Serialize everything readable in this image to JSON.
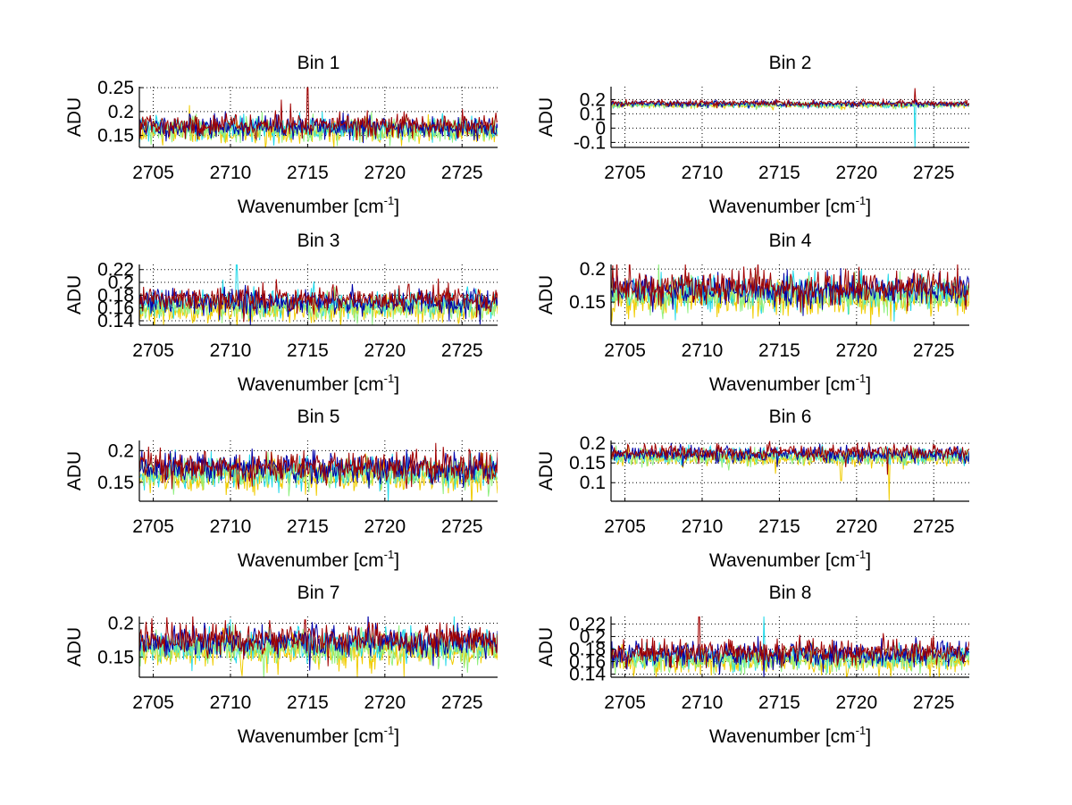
{
  "chart_data": [
    {
      "type": "line",
      "title": "Bin 1",
      "xlabel": "Wavenumber [cm",
      "xlabel_superscript": "-1",
      "xlabel_suffix": "]",
      "ylabel": "ADU",
      "xlim": [
        2704.1,
        2727.3
      ],
      "ylim": [
        0.125,
        0.252
      ],
      "xticks": [
        2705,
        2710,
        2715,
        2720,
        2725
      ],
      "xtick_labels": [
        "2705",
        "2710",
        "2715",
        "2720",
        "2725"
      ],
      "yticks": [
        0.15,
        0.2,
        0.25
      ],
      "ytick_labels": [
        "0.15",
        "0.2",
        "0.25"
      ],
      "grid": true,
      "series_means": [
        0.168,
        0.165,
        0.162,
        0.158,
        0.172
      ],
      "noise": 0.012,
      "spikes": [
        {
          "series": 4,
          "x": 2715.0,
          "y": 0.25
        },
        {
          "series": 4,
          "x": 2713.3,
          "y": 0.225
        },
        {
          "series": 3,
          "x": 2716.7,
          "y": 0.125
        }
      ],
      "seed": 11
    },
    {
      "type": "line",
      "title": "Bin 2",
      "xlabel": "Wavenumber [cm",
      "xlabel_superscript": "-1",
      "xlabel_suffix": "]",
      "ylabel": "ADU",
      "xlim": [
        2704.1,
        2727.3
      ],
      "ylim": [
        -0.135,
        0.29
      ],
      "xticks": [
        2705,
        2710,
        2715,
        2720,
        2725
      ],
      "xtick_labels": [
        "2705",
        "2710",
        "2715",
        "2720",
        "2725"
      ],
      "yticks": [
        -0.1,
        0,
        0.1,
        0.2
      ],
      "ytick_labels": [
        "-0.1",
        "0",
        "0.1",
        "0.2"
      ],
      "grid": true,
      "series_means": [
        0.17,
        0.165,
        0.163,
        0.16,
        0.175
      ],
      "noise": 0.01,
      "spikes": [
        {
          "series": 1,
          "x": 2723.8,
          "y": -0.135
        },
        {
          "series": 4,
          "x": 2723.8,
          "y": 0.28
        }
      ],
      "seed": 22
    },
    {
      "type": "line",
      "title": "Bin 3",
      "xlabel": "Wavenumber [cm",
      "xlabel_superscript": "-1",
      "xlabel_suffix": "]",
      "ylabel": "ADU",
      "xlim": [
        2704.1,
        2727.3
      ],
      "ylim": [
        0.133,
        0.228
      ],
      "xticks": [
        2705,
        2710,
        2715,
        2720,
        2725
      ],
      "xtick_labels": [
        "2705",
        "2710",
        "2715",
        "2720",
        "2725"
      ],
      "yticks": [
        0.14,
        0.16,
        0.18,
        0.2,
        0.22
      ],
      "ytick_labels": [
        "0.14",
        "0.16",
        "0.18",
        "0.2",
        "0.22"
      ],
      "grid": true,
      "series_means": [
        0.17,
        0.168,
        0.162,
        0.158,
        0.174
      ],
      "noise": 0.01,
      "spikes": [
        {
          "series": 1,
          "x": 2710.4,
          "y": 0.228
        },
        {
          "series": 0,
          "x": 2711.3,
          "y": 0.133
        }
      ],
      "seed": 33
    },
    {
      "type": "line",
      "title": "Bin 4",
      "xlabel": "Wavenumber [cm",
      "xlabel_superscript": "-1",
      "xlabel_suffix": "]",
      "ylabel": "ADU",
      "xlim": [
        2704.1,
        2727.3
      ],
      "ylim": [
        0.115,
        0.207
      ],
      "xticks": [
        2705,
        2710,
        2715,
        2720,
        2725
      ],
      "xtick_labels": [
        "2705",
        "2710",
        "2715",
        "2720",
        "2725"
      ],
      "yticks": [
        0.15,
        0.2
      ],
      "ytick_labels": [
        "0.15",
        "0.2"
      ],
      "grid": true,
      "series_means": [
        0.168,
        0.165,
        0.162,
        0.156,
        0.172
      ],
      "noise": 0.013,
      "spikes": [
        {
          "series": 3,
          "x": 2720.9,
          "y": 0.115
        }
      ],
      "seed": 44
    },
    {
      "type": "line",
      "title": "Bin 5",
      "xlabel": "Wavenumber [cm",
      "xlabel_superscript": "-1",
      "xlabel_suffix": "]",
      "ylabel": "ADU",
      "xlim": [
        2704.1,
        2727.3
      ],
      "ylim": [
        0.12,
        0.216
      ],
      "xticks": [
        2705,
        2710,
        2715,
        2720,
        2725
      ],
      "xtick_labels": [
        "2705",
        "2710",
        "2715",
        "2720",
        "2725"
      ],
      "yticks": [
        0.15,
        0.2
      ],
      "ytick_labels": [
        "0.15",
        "0.2"
      ],
      "grid": true,
      "series_means": [
        0.172,
        0.167,
        0.163,
        0.158,
        0.175
      ],
      "noise": 0.012,
      "spikes": [
        {
          "series": 1,
          "x": 2720.2,
          "y": 0.12
        },
        {
          "series": 4,
          "x": 2723.3,
          "y": 0.212
        }
      ],
      "seed": 55
    },
    {
      "type": "line",
      "title": "Bin 6",
      "xlabel": "Wavenumber [cm",
      "xlabel_superscript": "-1",
      "xlabel_suffix": "]",
      "ylabel": "ADU",
      "xlim": [
        2704.1,
        2727.3
      ],
      "ylim": [
        0.053,
        0.207
      ],
      "xticks": [
        2705,
        2710,
        2715,
        2720,
        2725
      ],
      "xtick_labels": [
        "2705",
        "2710",
        "2715",
        "2720",
        "2725"
      ],
      "yticks": [
        0.1,
        0.15,
        0.2
      ],
      "ytick_labels": [
        "0.1",
        "0.15",
        "0.2"
      ],
      "grid": true,
      "series_means": [
        0.172,
        0.168,
        0.165,
        0.16,
        0.176
      ],
      "noise": 0.01,
      "spikes": [
        {
          "series": 3,
          "x": 2722.1,
          "y": 0.055
        },
        {
          "series": 3,
          "x": 2719.0,
          "y": 0.105
        },
        {
          "series": 4,
          "x": 2722.0,
          "y": 0.12
        }
      ],
      "seed": 66
    },
    {
      "type": "line",
      "title": "Bin 7",
      "xlabel": "Wavenumber [cm",
      "xlabel_superscript": "-1",
      "xlabel_suffix": "]",
      "ylabel": "ADU",
      "xlim": [
        2704.1,
        2727.3
      ],
      "ylim": [
        0.12,
        0.21
      ],
      "xticks": [
        2705,
        2710,
        2715,
        2720,
        2725
      ],
      "xtick_labels": [
        "2705",
        "2710",
        "2715",
        "2720",
        "2725"
      ],
      "yticks": [
        0.15,
        0.2
      ],
      "ytick_labels": [
        "0.15",
        "0.2"
      ],
      "grid": true,
      "series_means": [
        0.172,
        0.168,
        0.163,
        0.158,
        0.176
      ],
      "noise": 0.012,
      "spikes": [
        {
          "series": 1,
          "x": 2724.5,
          "y": 0.21
        },
        {
          "series": 3,
          "x": 2718.2,
          "y": 0.12
        }
      ],
      "seed": 77
    },
    {
      "type": "line",
      "title": "Bin 8",
      "xlabel": "Wavenumber [cm",
      "xlabel_superscript": "-1",
      "xlabel_suffix": "]",
      "ylabel": "ADU",
      "xlim": [
        2704.1,
        2727.3
      ],
      "ylim": [
        0.135,
        0.232
      ],
      "xticks": [
        2705,
        2710,
        2715,
        2720,
        2725
      ],
      "xtick_labels": [
        "2705",
        "2710",
        "2715",
        "2720",
        "2725"
      ],
      "yticks": [
        0.14,
        0.16,
        0.18,
        0.2,
        0.22
      ],
      "ytick_labels": [
        "0.14",
        "0.16",
        "0.18",
        "0.2",
        "0.22"
      ],
      "grid": true,
      "series_means": [
        0.172,
        0.168,
        0.164,
        0.16,
        0.176
      ],
      "noise": 0.01,
      "spikes": [
        {
          "series": 4,
          "x": 2709.8,
          "y": 0.232
        },
        {
          "series": 1,
          "x": 2714.0,
          "y": 0.232
        },
        {
          "series": 0,
          "x": 2714.0,
          "y": 0.135
        }
      ],
      "seed": 88
    }
  ],
  "series_colors": [
    "#0000a8",
    "#20d8e8",
    "#90f080",
    "#f0cc00",
    "#a00000"
  ]
}
